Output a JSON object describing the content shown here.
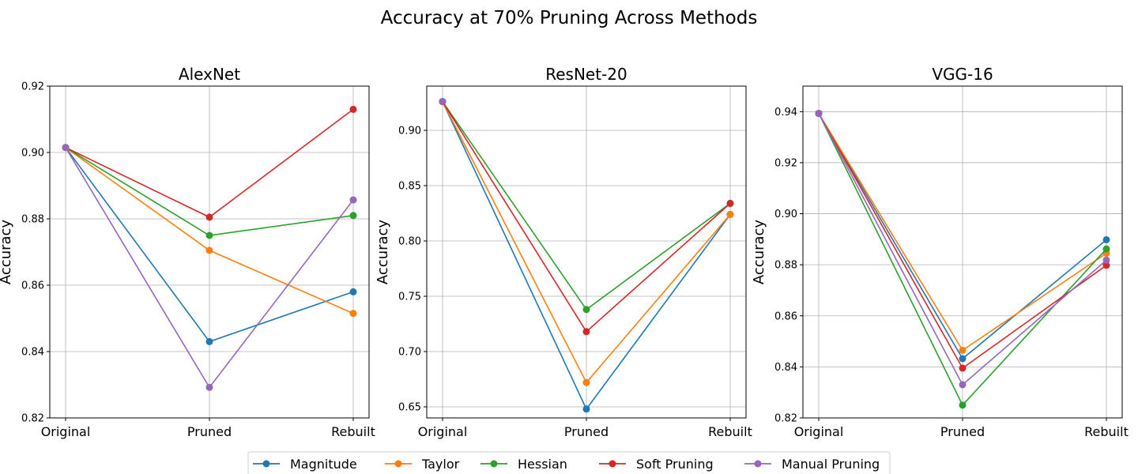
{
  "figure_title": "Accuracy at 70% Pruning Across Methods",
  "legend": [
    {
      "name": "Magnitude",
      "color": "#1f77b4"
    },
    {
      "name": "Taylor",
      "color": "#ff7f0e"
    },
    {
      "name": "Hessian",
      "color": "#2ca02c"
    },
    {
      "name": "Soft Pruning",
      "color": "#d62728"
    },
    {
      "name": "Manual Pruning",
      "color": "#9467bd"
    }
  ],
  "chart_data": [
    {
      "type": "line",
      "title": "AlexNet",
      "xlabel": "",
      "ylabel": "Accuracy",
      "categories": [
        "Original",
        "Pruned",
        "Rebuilt"
      ],
      "ylim": [
        0.82,
        0.92
      ],
      "yticks": [
        "0.82",
        "0.84",
        "0.86",
        "0.88",
        "0.90",
        "0.92"
      ],
      "grid": true,
      "series": [
        {
          "name": "Magnitude",
          "color": "#1f77b4",
          "values": [
            0.9015,
            0.843,
            0.858
          ]
        },
        {
          "name": "Taylor",
          "color": "#ff7f0e",
          "values": [
            0.9015,
            0.8705,
            0.8515
          ]
        },
        {
          "name": "Hessian",
          "color": "#2ca02c",
          "values": [
            0.9015,
            0.875,
            0.881
          ]
        },
        {
          "name": "Soft Pruning",
          "color": "#d62728",
          "values": [
            0.9015,
            0.8805,
            0.913
          ]
        },
        {
          "name": "Manual Pruning",
          "color": "#9467bd",
          "values": [
            0.9015,
            0.8292,
            0.8857
          ]
        }
      ]
    },
    {
      "type": "line",
      "title": "ResNet-20",
      "xlabel": "",
      "ylabel": "Accuracy",
      "categories": [
        "Original",
        "Pruned",
        "Rebuilt"
      ],
      "ylim": [
        0.64,
        0.94
      ],
      "yticks": [
        "0.65",
        "0.70",
        "0.75",
        "0.80",
        "0.85",
        "0.90"
      ],
      "grid": true,
      "series": [
        {
          "name": "Magnitude",
          "color": "#1f77b4",
          "values": [
            0.926,
            0.648,
            0.824
          ]
        },
        {
          "name": "Taylor",
          "color": "#ff7f0e",
          "values": [
            0.926,
            0.672,
            0.824
          ]
        },
        {
          "name": "Hessian",
          "color": "#2ca02c",
          "values": [
            0.926,
            0.738,
            0.834
          ]
        },
        {
          "name": "Soft Pruning",
          "color": "#d62728",
          "values": [
            0.926,
            0.718,
            0.834
          ]
        },
        {
          "name": "Manual Pruning",
          "color": "#9467bd",
          "values": [
            0.926,
            null,
            null
          ]
        }
      ]
    },
    {
      "type": "line",
      "title": "VGG-16",
      "xlabel": "",
      "ylabel": "Accuracy",
      "categories": [
        "Original",
        "Pruned",
        "Rebuilt"
      ],
      "ylim": [
        0.82,
        0.95
      ],
      "yticks": [
        "0.82",
        "0.84",
        "0.86",
        "0.88",
        "0.90",
        "0.92",
        "0.94"
      ],
      "grid": true,
      "series": [
        {
          "name": "Magnitude",
          "color": "#1f77b4",
          "values": [
            0.9393,
            0.8432,
            0.8898
          ]
        },
        {
          "name": "Taylor",
          "color": "#ff7f0e",
          "values": [
            0.9393,
            0.8465,
            0.8845
          ]
        },
        {
          "name": "Hessian",
          "color": "#2ca02c",
          "values": [
            0.9393,
            0.825,
            0.8862
          ]
        },
        {
          "name": "Soft Pruning",
          "color": "#d62728",
          "values": [
            0.9393,
            0.8395,
            0.8798
          ]
        },
        {
          "name": "Manual Pruning",
          "color": "#9467bd",
          "values": [
            0.9393,
            0.833,
            0.8818
          ]
        }
      ]
    }
  ]
}
